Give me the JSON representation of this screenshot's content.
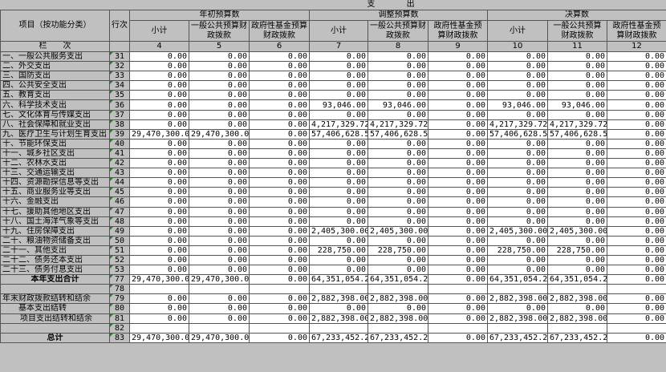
{
  "header": {
    "section_title": "支 出",
    "item_label": "项目（按功能分类）",
    "line_label": "行次",
    "column_index_label": "栏　　次",
    "groups": [
      "年初预算数",
      "调整预算数",
      "决算数"
    ],
    "subcolumns": [
      "小计",
      "一般公共预算财政拨款",
      "政府性基金预算财政拨款"
    ],
    "column_numbers": [
      "4",
      "5",
      "6",
      "7",
      "8",
      "9",
      "10",
      "11",
      "12"
    ]
  },
  "rows": [
    {
      "label": "一、一般公共服务支出",
      "line": "31",
      "values": [
        "0.00",
        "0.00",
        "0.00",
        "0.00",
        "0.00",
        "0.00",
        "0.00",
        "0.00",
        "0.00"
      ]
    },
    {
      "label": "二、外交支出",
      "line": "32",
      "values": [
        "0.00",
        "0.00",
        "0.00",
        "0.00",
        "0.00",
        "0.00",
        "0.00",
        "0.00",
        "0.00"
      ]
    },
    {
      "label": "三、国防支出",
      "line": "33",
      "values": [
        "0.00",
        "0.00",
        "0.00",
        "0.00",
        "0.00",
        "0.00",
        "0.00",
        "0.00",
        "0.00"
      ]
    },
    {
      "label": "四、公共安全支出",
      "line": "34",
      "values": [
        "0.00",
        "0.00",
        "0.00",
        "0.00",
        "0.00",
        "0.00",
        "0.00",
        "0.00",
        "0.00"
      ]
    },
    {
      "label": "五、教育支出",
      "line": "35",
      "values": [
        "0.00",
        "0.00",
        "0.00",
        "0.00",
        "0.00",
        "0.00",
        "0.00",
        "0.00",
        "0.00"
      ]
    },
    {
      "label": "六、科学技术支出",
      "line": "36",
      "values": [
        "0.00",
        "0.00",
        "0.00",
        "93,046.00",
        "93,046.00",
        "0.00",
        "93,046.00",
        "93,046.00",
        "0.00"
      ]
    },
    {
      "label": "七、文化体育与传媒支出",
      "line": "37",
      "values": [
        "0.00",
        "0.00",
        "0.00",
        "0.00",
        "0.00",
        "0.00",
        "0.00",
        "0.00",
        "0.00"
      ]
    },
    {
      "label": "八、社会保障和就业支出",
      "line": "38",
      "values": [
        "0.00",
        "0.00",
        "0.00",
        "4,217,329.72",
        "4,217,329.72",
        "0.00",
        "4,217,329.72",
        "4,217,329.72",
        "0.00"
      ]
    },
    {
      "label": "九、医疗卫生与计划生育支出",
      "line": "39",
      "values": [
        "29,470,300.00",
        "29,470,300.00",
        "0.00",
        "57,406,628.51",
        "57,406,628.51",
        "0.00",
        "57,406,628.51",
        "57,406,628.51",
        "0.00"
      ]
    },
    {
      "label": "十、节能环保支出",
      "line": "40",
      "values": [
        "0.00",
        "0.00",
        "0.00",
        "0.00",
        "0.00",
        "0.00",
        "0.00",
        "0.00",
        "0.00"
      ]
    },
    {
      "label": "十一、城乡社区支出",
      "line": "41",
      "values": [
        "0.00",
        "0.00",
        "0.00",
        "0.00",
        "0.00",
        "0.00",
        "0.00",
        "0.00",
        "0.00"
      ]
    },
    {
      "label": "十二、农林水支出",
      "line": "42",
      "values": [
        "0.00",
        "0.00",
        "0.00",
        "0.00",
        "0.00",
        "0.00",
        "0.00",
        "0.00",
        "0.00"
      ]
    },
    {
      "label": "十三、交通运输支出",
      "line": "43",
      "values": [
        "0.00",
        "0.00",
        "0.00",
        "0.00",
        "0.00",
        "0.00",
        "0.00",
        "0.00",
        "0.00"
      ]
    },
    {
      "label": "十四、资源勘探信息等支出",
      "line": "44",
      "values": [
        "0.00",
        "0.00",
        "0.00",
        "0.00",
        "0.00",
        "0.00",
        "0.00",
        "0.00",
        "0.00"
      ]
    },
    {
      "label": "十五、商业服务业等支出",
      "line": "45",
      "values": [
        "0.00",
        "0.00",
        "0.00",
        "0.00",
        "0.00",
        "0.00",
        "0.00",
        "0.00",
        "0.00"
      ]
    },
    {
      "label": "十六、金融支出",
      "line": "46",
      "values": [
        "0.00",
        "0.00",
        "0.00",
        "0.00",
        "0.00",
        "0.00",
        "0.00",
        "0.00",
        "0.00"
      ]
    },
    {
      "label": "十七、援助其他地区支出",
      "line": "47",
      "values": [
        "0.00",
        "0.00",
        "0.00",
        "0.00",
        "0.00",
        "0.00",
        "0.00",
        "0.00",
        "0.00"
      ]
    },
    {
      "label": "十八、国土海洋气象等支出",
      "line": "48",
      "values": [
        "0.00",
        "0.00",
        "0.00",
        "0.00",
        "0.00",
        "0.00",
        "0.00",
        "0.00",
        "0.00"
      ]
    },
    {
      "label": "十九、住房保障支出",
      "line": "49",
      "values": [
        "0.00",
        "0.00",
        "0.00",
        "2,405,300.00",
        "2,405,300.00",
        "0.00",
        "2,405,300.00",
        "2,405,300.00",
        "0.00"
      ]
    },
    {
      "label": "二十、粮油物资储备支出",
      "line": "50",
      "values": [
        "0.00",
        "0.00",
        "0.00",
        "0.00",
        "0.00",
        "0.00",
        "0.00",
        "0.00",
        "0.00"
      ]
    },
    {
      "label": "二十一、其他支出",
      "line": "51",
      "values": [
        "0.00",
        "0.00",
        "0.00",
        "228,750.00",
        "228,750.00",
        "0.00",
        "228,750.00",
        "228,750.00",
        "0.00"
      ]
    },
    {
      "label": "二十二、债务还本支出",
      "line": "52",
      "values": [
        "0.00",
        "0.00",
        "0.00",
        "0.00",
        "0.00",
        "0.00",
        "0.00",
        "0.00",
        "0.00"
      ]
    },
    {
      "label": "二十三、债务付息支出",
      "line": "53",
      "values": [
        "0.00",
        "0.00",
        "0.00",
        "0.00",
        "0.00",
        "0.00",
        "0.00",
        "0.00",
        "0.00"
      ]
    },
    {
      "label": "本年支出合计",
      "line": "77",
      "style": "bold",
      "values": [
        "29,470,300.00",
        "29,470,300.00",
        "0.00",
        "64,351,054.23",
        "64,351,054.23",
        "0.00",
        "64,351,054.23",
        "64,351,054.23",
        "0.00"
      ]
    },
    {
      "label": "",
      "line": "78",
      "values": [
        "",
        "",
        "",
        "",
        "",
        "",
        "",
        "",
        ""
      ]
    },
    {
      "label": "年末财政拨款结转和结余",
      "line": "79",
      "values": [
        "0.00",
        "0.00",
        "0.00",
        "2,882,398.00",
        "2,882,398.00",
        "0.00",
        "2,882,398.00",
        "2,882,398.00",
        "0.00"
      ]
    },
    {
      "label": "基本支出结转",
      "line": "80",
      "style": "indent",
      "values": [
        "0.00",
        "0.00",
        "0.00",
        "0.00",
        "0.00",
        "0.00",
        "0.00",
        "0.00",
        "0.00"
      ]
    },
    {
      "label": "项目支出结转和结余",
      "line": "81",
      "style": "indent2",
      "values": [
        "0.00",
        "0.00",
        "0.00",
        "2,882,398.00",
        "2,882,398.00",
        "0.00",
        "2,882,398.00",
        "2,882,398.00",
        "0.00"
      ]
    },
    {
      "label": "",
      "line": "82",
      "values": [
        "",
        "",
        "",
        "",
        "",
        "",
        "",
        "",
        ""
      ]
    },
    {
      "label": "总计",
      "line": "83",
      "style": "bold",
      "values": [
        "29,470,300.00",
        "29,470,300.00",
        "0.00",
        "67,233,452.23",
        "67,233,452.23",
        "0.00",
        "67,233,452.23",
        "67,233,452.23",
        "0.00"
      ]
    }
  ]
}
